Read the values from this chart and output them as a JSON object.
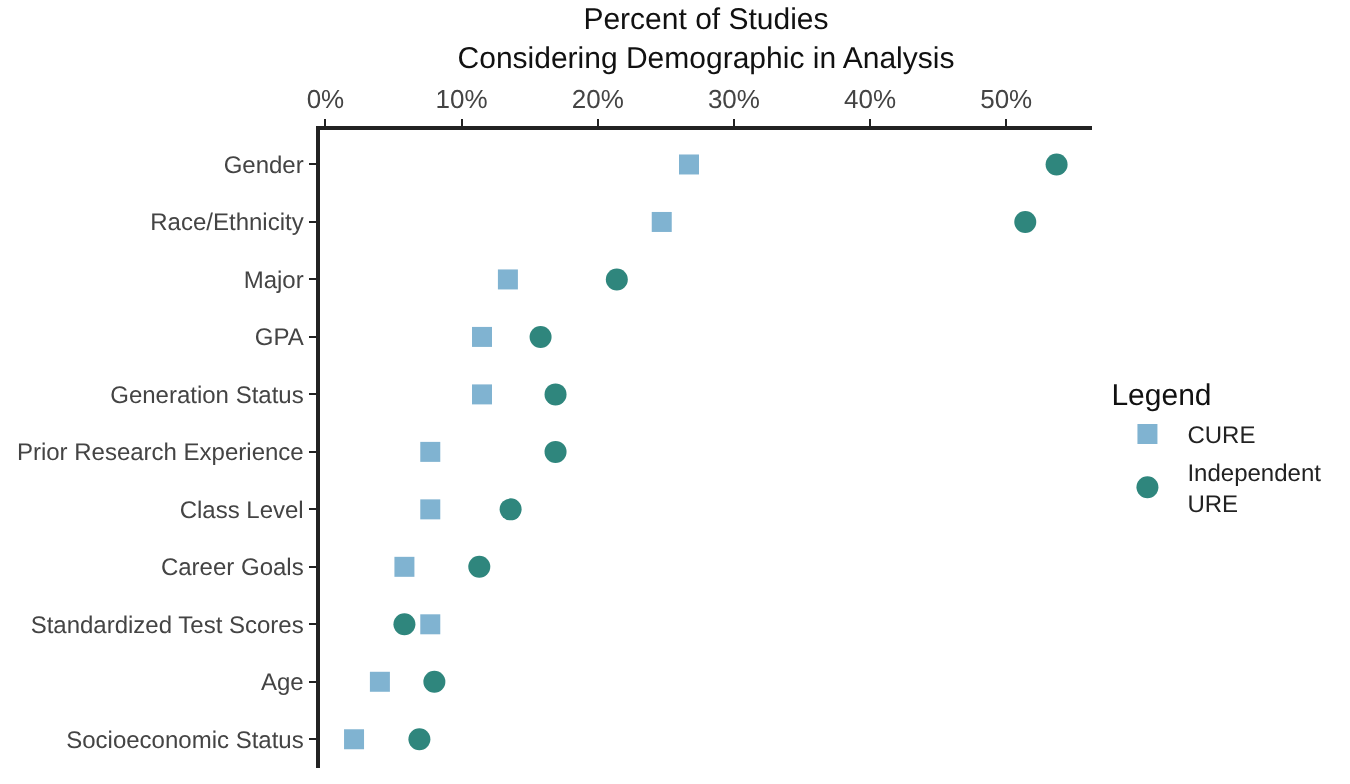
{
  "chart_data": {
    "type": "scatter",
    "orientation": "horizontal",
    "xlabel": "Percent of Studies\nConsidering Demographic in Analysis",
    "legend_title": "Legend",
    "categories": [
      "Gender",
      "Race/Ethnicity",
      "Major",
      "GPA",
      "Generation Status",
      "Prior Research Experience",
      "Class Level",
      "Career Goals",
      "Standardized Test Scores",
      "Age",
      "Socioeconomic Status"
    ],
    "series": [
      {
        "name": "CURE",
        "color": "#80b3d1",
        "marker": "square",
        "values": [
          26.7,
          24.7,
          13.4,
          11.5,
          11.5,
          7.7,
          7.7,
          5.8,
          7.7,
          4.0,
          2.1
        ]
      },
      {
        "name": "Independent URE",
        "color": "#2f867d",
        "marker": "circle",
        "values": [
          53.7,
          51.4,
          21.4,
          15.8,
          16.9,
          16.9,
          13.6,
          11.3,
          5.8,
          8.0,
          6.9
        ]
      }
    ],
    "xlim": [
      -0.4,
      56.3
    ],
    "xticks": [
      {
        "value": 0,
        "label": "0%"
      },
      {
        "value": 10,
        "label": "10%"
      },
      {
        "value": 20,
        "label": "20%"
      },
      {
        "value": 30,
        "label": "30%"
      },
      {
        "value": 40,
        "label": "40%"
      },
      {
        "value": 50,
        "label": "50%"
      }
    ],
    "legend": "right"
  }
}
